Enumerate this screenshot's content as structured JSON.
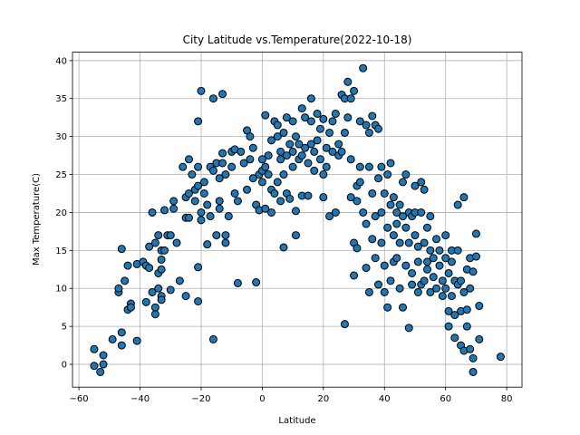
{
  "chart_data": {
    "type": "scatter",
    "title": "City Latitude vs.Temperature(2022-10-18)",
    "x_label": "Latitude",
    "y_label": "Max Temperature(C)",
    "color": "#1f77b4",
    "edgecolor": "#000000",
    "grid": true,
    "xlim": [
      -62.1,
      85
    ],
    "ylim": [
      -3,
      41.1
    ],
    "xticks": [
      {
        "value": -60,
        "label": "−60"
      },
      {
        "value": -40,
        "label": "−40"
      },
      {
        "value": -20,
        "label": "−20"
      },
      0,
      20,
      40,
      60,
      80
    ],
    "yticks": [
      0,
      5,
      10,
      15,
      20,
      25,
      30,
      35,
      40
    ],
    "x": [
      -55,
      -55,
      -53,
      -52,
      -52,
      -49,
      -47,
      -47,
      -46,
      -46,
      -46,
      -45,
      -44,
      -44,
      -43,
      -43,
      -41,
      -41,
      -39,
      -38,
      -38,
      -37,
      -37,
      -36,
      -36,
      -35,
      -35,
      -35,
      -34,
      -34,
      -34,
      -33,
      -33,
      -33,
      -33,
      -33,
      -32,
      -32,
      -31,
      -30,
      -30,
      -29,
      -29,
      -28,
      -27,
      -26,
      -25,
      -25,
      -25,
      -24,
      -24,
      -24,
      -23,
      -22,
      -22,
      -21,
      -21,
      -21,
      -21,
      -21,
      -20,
      -20,
      -20,
      -19,
      -19,
      -18,
      -18,
      -17,
      -17,
      -16,
      -16,
      -16,
      -15,
      -15,
      -14,
      -14,
      -14,
      -13,
      -13,
      -13,
      -12,
      -12,
      -12,
      -11,
      -10,
      -10,
      -9,
      -9,
      -8,
      -8,
      -7,
      -6,
      -5,
      -5,
      -4,
      -4,
      -3,
      -3,
      -2,
      -2,
      -1,
      -1,
      0,
      0,
      0,
      1,
      1,
      1,
      2,
      2,
      3,
      3,
      3,
      4,
      4,
      5,
      5,
      5,
      6,
      6,
      6,
      7,
      7,
      7,
      8,
      8,
      8,
      9,
      9,
      10,
      10,
      10,
      11,
      11,
      11,
      12,
      12,
      13,
      13,
      13,
      14,
      14,
      15,
      15,
      16,
      16,
      16,
      17,
      17,
      18,
      18,
      19,
      19,
      20,
      20,
      20,
      21,
      21,
      22,
      22,
      23,
      23,
      24,
      24,
      25,
      25,
      26,
      26,
      27,
      27,
      27,
      28,
      28,
      29,
      29,
      29,
      30,
      30,
      30,
      31,
      31,
      31,
      32,
      32,
      32,
      33,
      33,
      34,
      34,
      34,
      35,
      35,
      35,
      36,
      36,
      36,
      37,
      37,
      37,
      38,
      38,
      38,
      39,
      39,
      39,
      40,
      40,
      40,
      41,
      41,
      41,
      42,
      42,
      42,
      43,
      43,
      43,
      44,
      44,
      44,
      45,
      45,
      45,
      46,
      46,
      46,
      47,
      47,
      47,
      48,
      48,
      48,
      49,
      49,
      49,
      50,
      50,
      50,
      51,
      51,
      51,
      52,
      52,
      52,
      53,
      53,
      53,
      54,
      54,
      54,
      55,
      55,
      55,
      56,
      56,
      57,
      57,
      58,
      58,
      59,
      59,
      60,
      60,
      60,
      61,
      61,
      61,
      62,
      62,
      62,
      63,
      63,
      63,
      64,
      64,
      64,
      65,
      65,
      65,
      66,
      66,
      66,
      67,
      67,
      67,
      68,
      68,
      68,
      69,
      69,
      69,
      70,
      70,
      71,
      71,
      78
    ],
    "values": [
      2,
      -0.2,
      -1,
      0,
      1.2,
      3.3,
      9.5,
      10,
      15.2,
      4.2,
      2.5,
      11,
      13,
      7.2,
      8,
      7.5,
      13.2,
      3.1,
      13.5,
      8.2,
      13,
      12.7,
      15.5,
      20,
      9.5,
      7.5,
      6.6,
      16,
      17,
      12,
      10,
      9,
      8.5,
      12.5,
      15,
      13.8,
      15,
      20.3,
      17,
      17,
      9.8,
      21.5,
      20.5,
      16,
      11,
      26,
      19.3,
      9,
      22,
      22.5,
      27,
      19.3,
      25,
      21.5,
      23,
      26,
      32,
      23.5,
      12.8,
      8.3,
      36,
      20,
      19,
      22.5,
      24,
      21,
      15.8,
      26,
      19.5,
      35,
      3.3,
      25.5,
      26.5,
      17,
      24.5,
      21.5,
      20.5,
      35.6,
      26.5,
      27.8,
      16,
      17,
      25,
      19.5,
      28,
      26,
      22.5,
      28.3,
      10.7,
      21.5,
      28,
      26.5,
      30.8,
      23,
      30,
      27,
      28.5,
      24.5,
      10.8,
      21,
      20.3,
      25,
      27,
      24,
      25.5,
      32.8,
      20.5,
      26,
      27.5,
      25,
      20,
      23,
      29.5,
      32,
      22.5,
      30,
      24,
      31.5,
      28,
      21.5,
      27,
      15.4,
      25,
      30.5,
      32.5,
      22.5,
      27.5,
      29,
      21.8,
      32,
      28,
      26,
      30,
      20.2,
      17,
      27,
      29,
      33.7,
      27.5,
      22.2,
      32.5,
      28.5,
      26.5,
      22.2,
      35,
      29,
      32,
      28,
      25.5,
      33,
      29.5,
      27,
      31,
      25,
      22,
      32.3,
      28.5,
      26,
      30.5,
      19.5,
      32,
      28,
      20,
      33,
      29,
      27.5,
      35.5,
      28,
      35,
      30.5,
      5.3,
      37.2,
      32.5,
      27,
      22,
      35,
      36,
      16,
      11.7,
      23.5,
      15.3,
      21.5,
      32,
      26,
      24,
      39,
      20,
      31.5,
      18.5,
      12.7,
      9.5,
      26,
      30.5,
      32.7,
      22.5,
      16.5,
      31.5,
      14,
      19.5,
      31,
      24.5,
      10.5,
      26,
      20,
      16,
      22.5,
      9.5,
      13,
      25,
      7.5,
      18,
      26.5,
      21,
      11,
      22,
      17,
      13.5,
      20,
      14,
      18.5,
      16,
      21,
      10,
      24,
      19.5,
      7.5,
      18,
      13,
      25,
      4.8,
      20,
      16,
      19.5,
      12,
      10.5,
      23.5,
      17,
      20,
      15.5,
      13.5,
      9.5,
      24,
      20,
      10.5,
      23,
      16,
      11,
      12.5,
      18,
      13.5,
      15,
      9.5,
      19.5,
      14,
      11.5,
      16.5,
      10,
      13,
      15,
      11,
      9,
      17,
      14,
      10,
      5,
      12,
      7,
      15,
      13.5,
      9,
      6.5,
      11,
      3.5,
      21,
      15,
      10.5,
      2.5,
      7,
      11,
      22,
      1.8,
      9.5,
      5,
      12.5,
      7.2,
      14,
      2,
      10,
      -1,
      12.2,
      0.8,
      17.2,
      14.2,
      3.3,
      7.7,
      1
    ]
  }
}
